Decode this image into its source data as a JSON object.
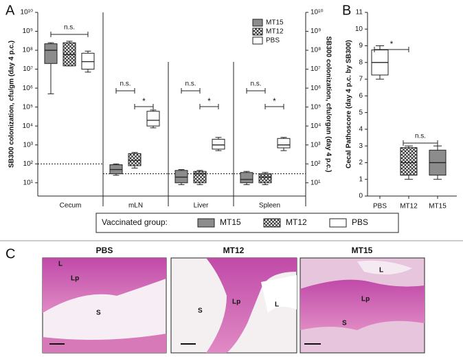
{
  "panel_labels": [
    "A",
    "B",
    "C"
  ],
  "chart_data": [
    {
      "type": "box",
      "y_label": "SB300 colonization, cfu/gm (day 4 p.c.)",
      "y2_label": "SB300 colonization, cfu/organ (day 4 p.c.)",
      "log_scale": true,
      "categories": [
        "Cecum",
        "mLN",
        "Liver",
        "Spleen"
      ],
      "series": [
        {
          "name": "MT15",
          "color": "#8c8c8c",
          "values": [
            {
              "min": 500000,
              "q1": 20000000,
              "median": 100000000,
              "q3": 220000000,
              "max": 250000000
            },
            {
              "min": 25,
              "q1": 30,
              "median": 50,
              "q3": 90,
              "max": 100
            },
            {
              "min": 8,
              "q1": 10,
              "median": 20,
              "q3": 45,
              "max": 50
            },
            {
              "min": 8,
              "q1": 10,
              "median": 15,
              "q3": 35,
              "max": 40
            }
          ]
        },
        {
          "name": "MT12",
          "color": "#ffffff",
          "pattern": "crosshatch",
          "values": [
            {
              "min": 15000000,
              "q1": 15000000,
              "median": 60000000,
              "q3": 250000000,
              "max": 300000000
            },
            {
              "min": 60,
              "q1": 80,
              "median": 150,
              "q3": 350,
              "max": 400
            },
            {
              "min": 8,
              "q1": 10,
              "median": 30,
              "q3": 40,
              "max": 45
            },
            {
              "min": 8,
              "q1": 10,
              "median": 20,
              "q3": 30,
              "max": 35
            }
          ]
        },
        {
          "name": "PBS",
          "color": "#ffffff",
          "values": [
            {
              "min": 7000000,
              "q1": 10000000,
              "median": 25000000,
              "q3": 70000000,
              "max": 90000000
            },
            {
              "min": 8000,
              "q1": 10000,
              "median": 20000,
              "q3": 60000,
              "max": 70000
            },
            {
              "min": 500,
              "q1": 600,
              "median": 1000,
              "q3": 2000,
              "max": 2500
            },
            {
              "min": 500,
              "q1": 700,
              "median": 1000,
              "q3": 2200,
              "max": 2500
            }
          ]
        }
      ],
      "ylim": [
        2,
        10000000000
      ],
      "yticks": [
        {
          "value": 10,
          "label": "10¹"
        },
        {
          "value": 100,
          "label": "10²"
        },
        {
          "value": 1000,
          "label": "10³"
        },
        {
          "value": 10000,
          "label": "10⁴"
        },
        {
          "value": 100000,
          "label": "10⁵"
        },
        {
          "value": 1000000,
          "label": "10⁶"
        },
        {
          "value": 10000000,
          "label": "10⁷"
        },
        {
          "value": 100000000,
          "label": "10⁸"
        },
        {
          "value": 1000000000,
          "label": "10⁹"
        },
        {
          "value": 10000000000,
          "label": "10¹⁰"
        }
      ],
      "y2lim": [
        2,
        10000000000
      ],
      "y2ticks": [
        {
          "value": 10,
          "label": "10¹"
        },
        {
          "value": 100,
          "label": "10²"
        },
        {
          "value": 1000,
          "label": "10³"
        },
        {
          "value": 10000,
          "label": "10⁴"
        },
        {
          "value": 100000,
          "label": "10⁵"
        },
        {
          "value": 1000000,
          "label": "10⁶"
        },
        {
          "value": 10000000,
          "label": "10⁷"
        },
        {
          "value": 100000000,
          "label": "10⁸"
        },
        {
          "value": 1000000000,
          "label": "10⁹"
        },
        {
          "value": 10000000000,
          "label": "10¹⁰"
        }
      ],
      "detection_limits": [
        100,
        30,
        30,
        30
      ],
      "comparisons": [
        [
          {
            "label": "n.s.",
            "groups": [
              "MT15",
              "PBS"
            ]
          }
        ],
        [
          {
            "label": "n.s.",
            "groups": [
              "MT15",
              "MT12"
            ]
          },
          {
            "label": "*",
            "groups": [
              "MT12",
              "PBS"
            ]
          }
        ],
        [
          {
            "label": "n.s.",
            "groups": [
              "MT15",
              "MT12"
            ]
          },
          {
            "label": "*",
            "groups": [
              "MT12",
              "PBS"
            ]
          }
        ],
        [
          {
            "label": "n.s.",
            "groups": [
              "MT15",
              "MT12"
            ]
          },
          {
            "label": "*",
            "groups": [
              "MT12",
              "PBS"
            ]
          }
        ]
      ],
      "legend": "upper right",
      "legend_title": "Vaccinated group:"
    },
    {
      "type": "box",
      "y_label": "Cecal Pathoscore (day 4 p.c. by SB300)",
      "categories": [
        "PBS",
        "MT12",
        "MT15"
      ],
      "colors": [
        "#ffffff",
        "#ffffff",
        "#8c8c8c"
      ],
      "patterns": [
        null,
        "crosshatch",
        null
      ],
      "values": [
        {
          "min": 7,
          "q1": 7.25,
          "median": 8,
          "q3": 8.75,
          "max": 9
        },
        {
          "min": 1,
          "q1": 1.25,
          "median": 2,
          "q3": 2.9,
          "max": 3
        },
        {
          "min": 1,
          "q1": 1.25,
          "median": 2,
          "q3": 2.75,
          "max": 3
        }
      ],
      "ylim": [
        0,
        11
      ],
      "yticks": [
        0,
        1,
        2,
        3,
        4,
        5,
        6,
        7,
        8,
        9,
        10,
        11
      ],
      "comparisons": [
        {
          "label": "*",
          "groups": [
            "PBS",
            "MT12"
          ]
        },
        {
          "label": "n.s.",
          "groups": [
            "MT12",
            "MT15"
          ]
        }
      ]
    }
  ],
  "histology": {
    "panels": [
      {
        "title": "PBS",
        "labels": [
          "L",
          "Lp",
          "S"
        ]
      },
      {
        "title": "MT12",
        "labels": [
          "S",
          "Lp",
          "L"
        ]
      },
      {
        "title": "MT15",
        "labels": [
          "L",
          "Lp",
          "S"
        ]
      }
    ]
  }
}
